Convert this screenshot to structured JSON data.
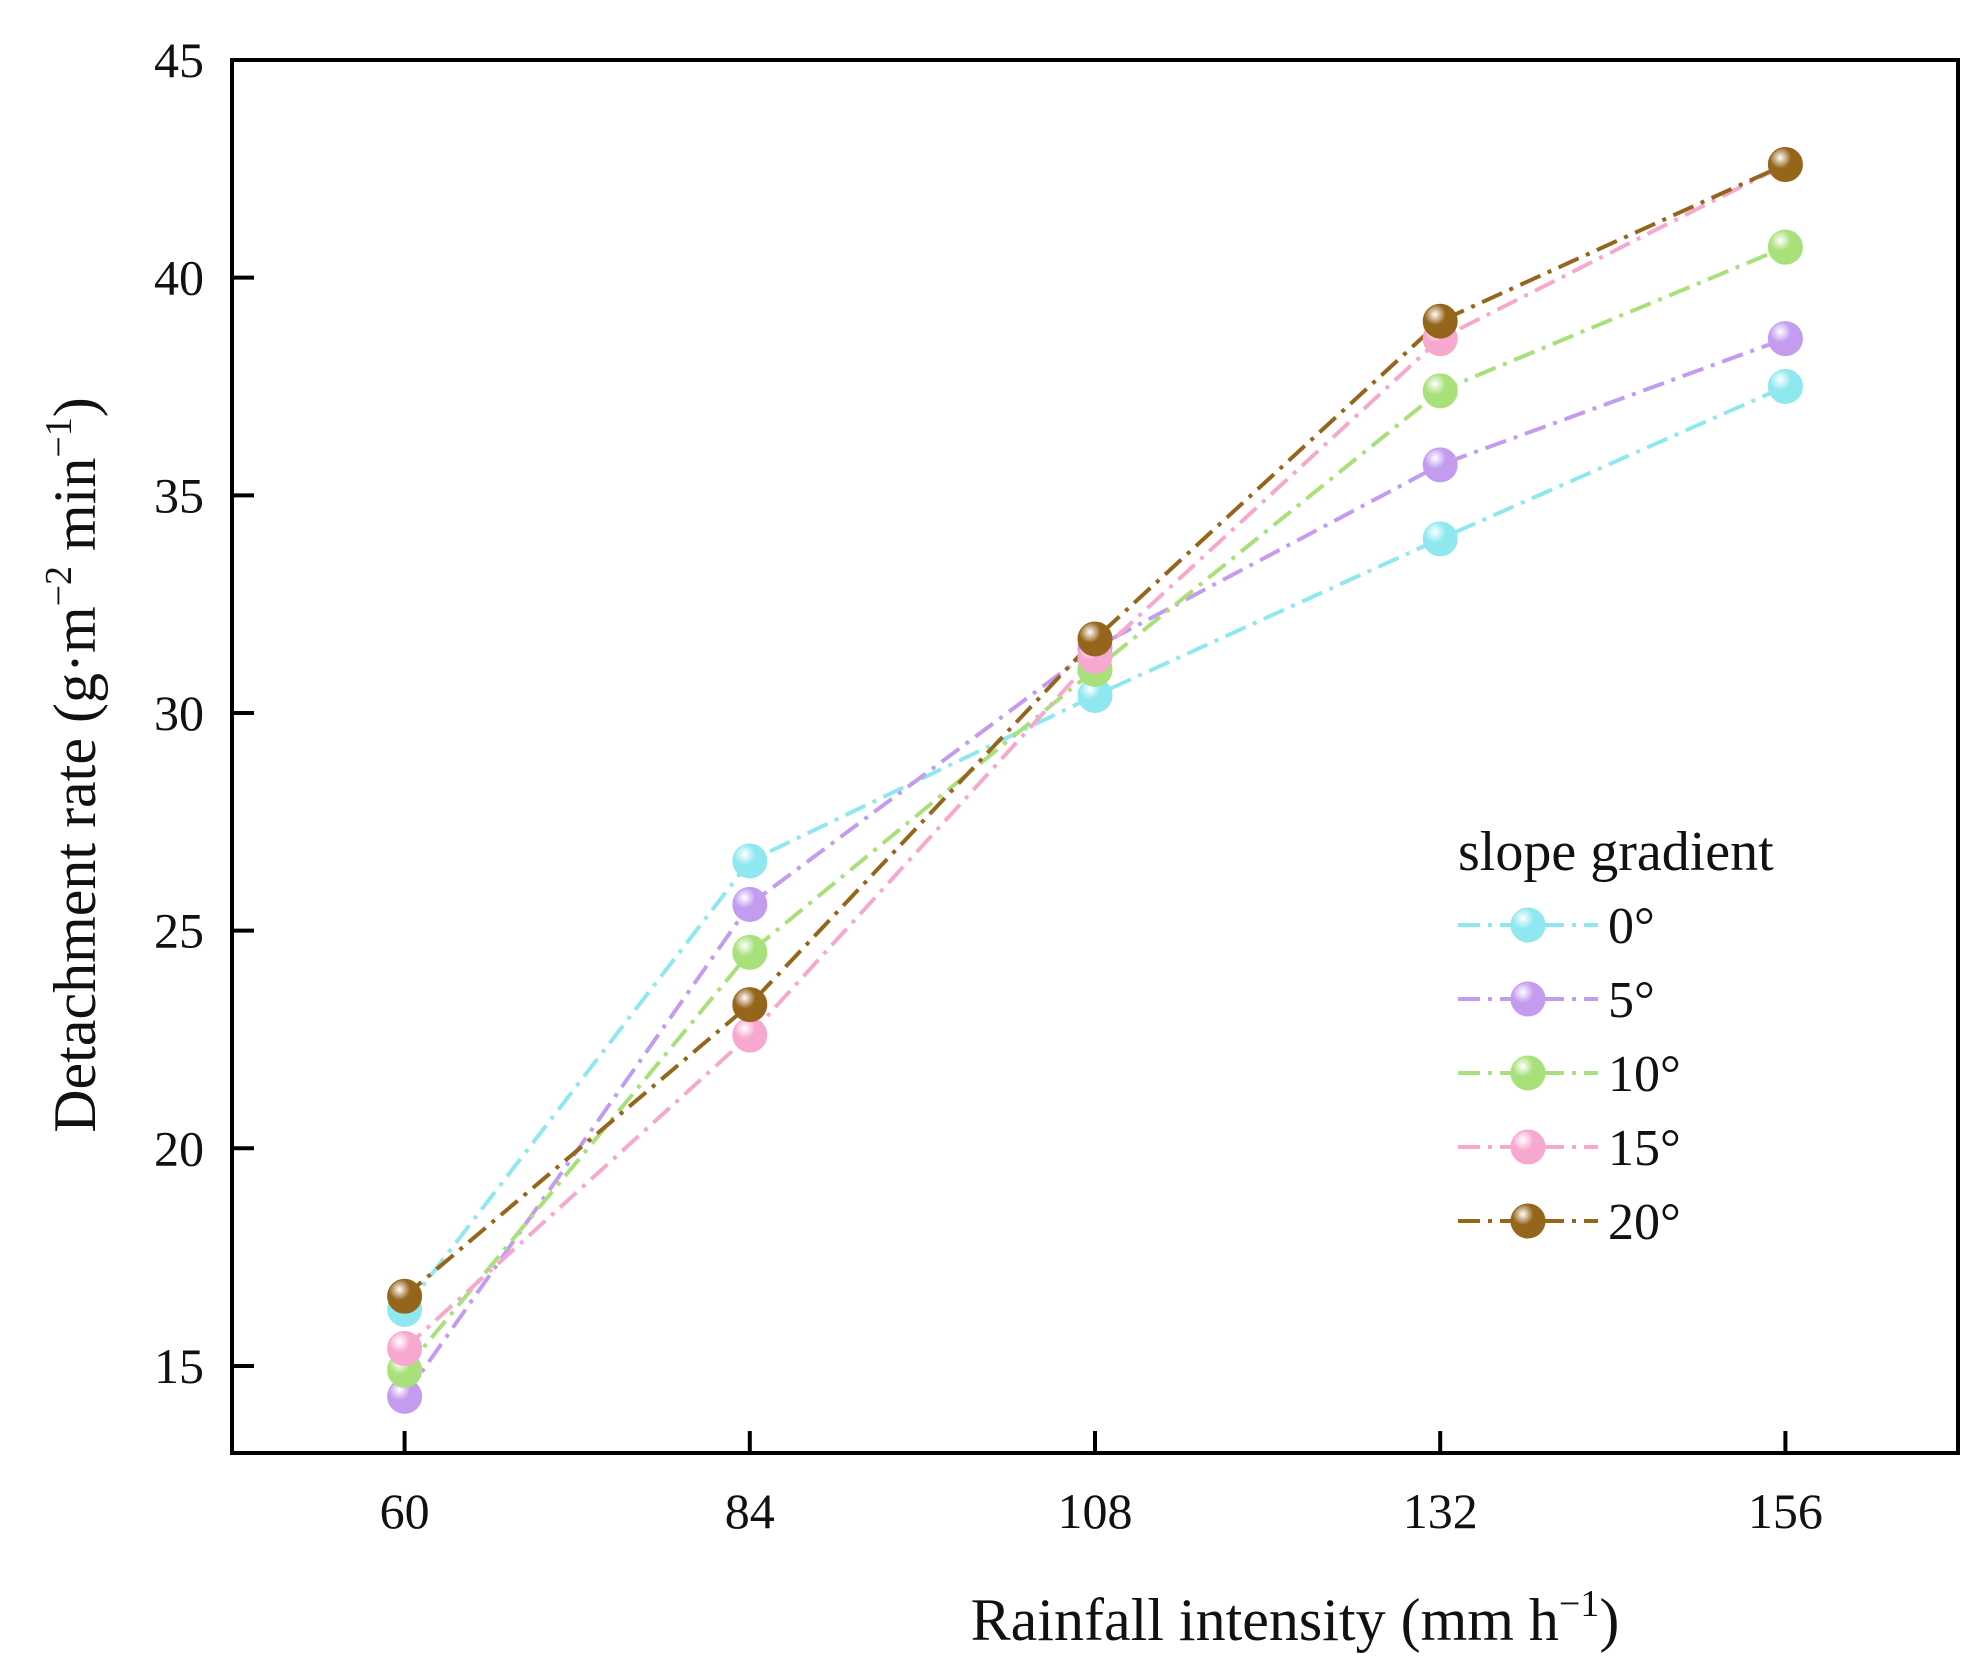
{
  "chart_data": {
    "type": "line",
    "x": [
      60,
      84,
      108,
      132,
      156
    ],
    "x_ticks": [
      "60",
      "84",
      "108",
      "132",
      "156"
    ],
    "y_ticks": [
      "15",
      "20",
      "25",
      "30",
      "35",
      "40",
      "45"
    ],
    "xlim": [
      48,
      168
    ],
    "ylim": [
      13,
      45
    ],
    "xlabel": {
      "main": "Rainfall intensity (mm h",
      "sup": "−1",
      "end": ")"
    },
    "ylabel": {
      "main": "Detachment rate (g·m",
      "sup1": "−2",
      "mid": " min",
      "sup2": "−1",
      "end": ")"
    },
    "grid": false,
    "legend": {
      "title": "slope gradient",
      "position": "right"
    },
    "series": [
      {
        "name": "0°",
        "color": "#8fe8f0",
        "values": [
          16.3,
          26.6,
          30.4,
          34.0,
          37.5
        ]
      },
      {
        "name": "5°",
        "color": "#c39cf0",
        "values": [
          14.3,
          25.6,
          31.5,
          35.7,
          38.6
        ]
      },
      {
        "name": "10°",
        "color": "#a8e07a",
        "values": [
          14.9,
          24.5,
          31.0,
          37.4,
          40.7
        ]
      },
      {
        "name": "15°",
        "color": "#f7a8cf",
        "values": [
          15.4,
          22.6,
          31.3,
          38.6,
          42.6
        ]
      },
      {
        "name": "20°",
        "color": "#96651c",
        "values": [
          16.6,
          23.3,
          31.7,
          39.0,
          42.6
        ]
      }
    ]
  }
}
